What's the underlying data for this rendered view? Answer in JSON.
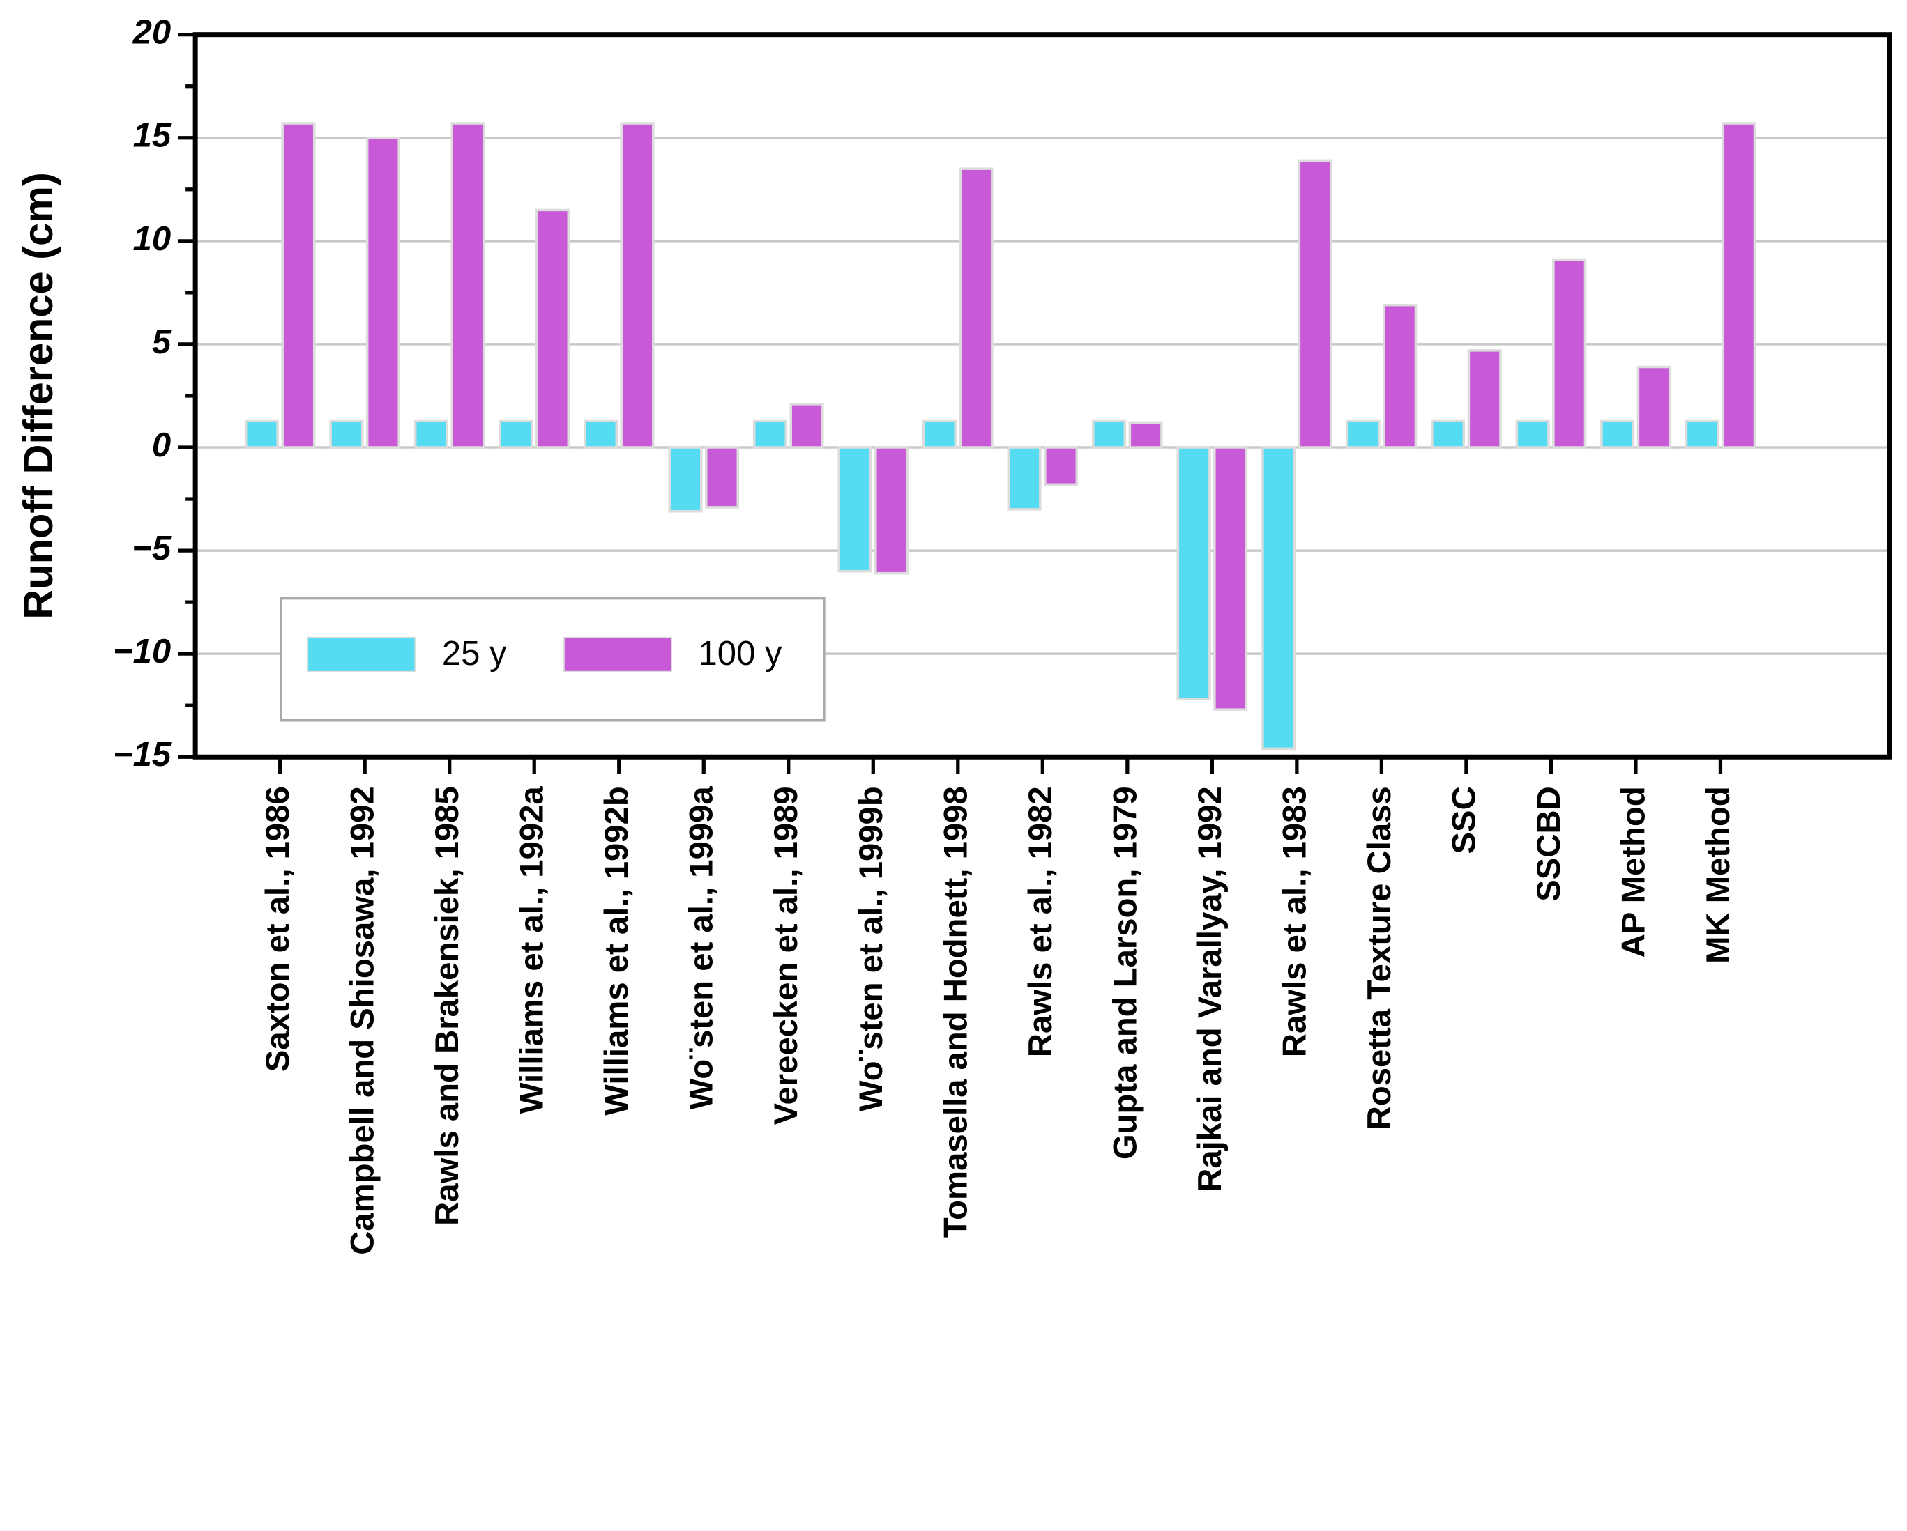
{
  "chart_data": {
    "type": "bar",
    "y_label": "Runoff Difference (cm)",
    "categories": [
      "Saxton et al., 1986",
      "Campbell and Shiosawa, 1992",
      "Rawls and Brakensiek, 1985",
      "Williams et al., 1992a",
      "Williams et al., 1992b",
      "Wo¨sten et al., 1999a",
      "Vereecken et al., 1989",
      "Wo¨sten et al., 1999b",
      "Tomasella and Hodnett, 1998",
      "Rawls et al., 1982",
      "Gupta and Larson, 1979",
      "Rajkai and Varallyay, 1992",
      "Rawls et al., 1983",
      "Rosetta Texture Class",
      "SSC",
      "SSCBD",
      "AP Method",
      "MK Method"
    ],
    "series": [
      {
        "name": "25 y",
        "color": "#55dcf2",
        "values": [
          1.3,
          1.3,
          1.3,
          1.3,
          1.3,
          -3.1,
          1.3,
          -6,
          1.3,
          -3,
          1.3,
          -12.2,
          -14.6,
          1.3,
          1.3,
          1.3,
          1.3,
          1.3
        ]
      },
      {
        "name": "100 y",
        "color": "#c85ad8",
        "values": [
          15.7,
          15,
          15.7,
          11.5,
          15.7,
          -2.9,
          2.1,
          -6.1,
          13.5,
          -1.8,
          1.2,
          -12.7,
          13.9,
          6.9,
          4.7,
          9.1,
          3.9,
          15.7
        ]
      }
    ],
    "ylim": [
      -15,
      20
    ],
    "yticks": [
      {
        "value": -15,
        "label": "−15"
      },
      {
        "value": -10,
        "label": "−10"
      },
      {
        "value": -5,
        "label": "−5"
      },
      0,
      5,
      10,
      15,
      20
    ],
    "yminorticks": [
      -12.5,
      -7.5,
      -2.5,
      2.5,
      7.5,
      12.5,
      17.5
    ],
    "grid": true,
    "legend": "lower left"
  }
}
